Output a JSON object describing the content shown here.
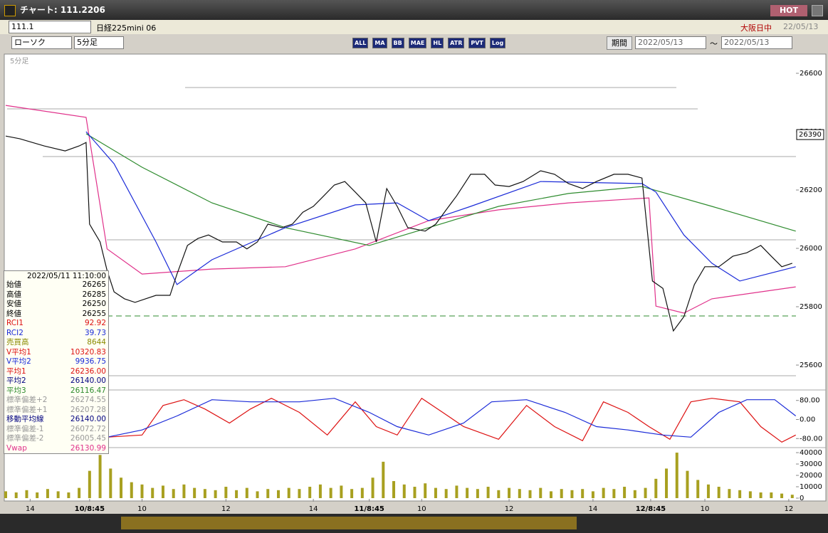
{
  "window": {
    "title": "チャート: 111.2206",
    "hot": "HOT"
  },
  "toolbar": {
    "symbol": "111.1",
    "name": "日経225mini 06",
    "market": "大阪日中",
    "date": "22/05/13",
    "chart_style": "ローソク",
    "interval": "5分足",
    "buttons": [
      "ALL",
      "MA",
      "BB",
      "MAE",
      "HL",
      "ATR",
      "PVT",
      "Log"
    ],
    "period_button": "期間",
    "from": "2022/05/13",
    "separator": "～",
    "to": "2022/05/13"
  },
  "chart_data": [
    {
      "type": "line",
      "panel_label": "5分足",
      "xlim": [
        0,
        226
      ],
      "ylim": [
        25522,
        26661
      ],
      "yticks": [
        25600,
        25800,
        26000,
        26200,
        26400,
        26600
      ],
      "last_price": 26390,
      "series": [
        {
          "color": "#e0308a",
          "x": [
            0,
            23,
            29,
            39,
            59,
            80,
            100,
            121,
            141,
            161,
            184,
            186,
            194,
            202,
            226
          ],
          "values": [
            26490,
            26449,
            25998,
            25912,
            25929,
            25937,
            25998,
            26095,
            26132,
            26156,
            26173,
            25802,
            25778,
            25827,
            25868
          ]
        },
        {
          "color": "#2e8b2e",
          "x": [
            23,
            39,
            59,
            80,
            104,
            121,
            141,
            161,
            182,
            202,
            226
          ],
          "values": [
            26393,
            26278,
            26156,
            26071,
            26010,
            26071,
            26144,
            26188,
            26212,
            26144,
            26059
          ]
        },
        {
          "color": "#1a2ad8",
          "x": [
            23,
            31,
            43,
            49,
            59,
            80,
            100,
            112,
            121,
            133,
            153,
            182,
            186,
            194,
            202,
            210,
            226
          ],
          "values": [
            26400,
            26290,
            26022,
            25876,
            25961,
            26071,
            26149,
            26156,
            26095,
            26144,
            26229,
            26222,
            26193,
            26046,
            25949,
            25888,
            25937
          ]
        },
        {
          "color": "#111111",
          "x": [
            0,
            4,
            11,
            17,
            21,
            23,
            24,
            27,
            29,
            31,
            34,
            37,
            40,
            43,
            47,
            49,
            52,
            55,
            58,
            62,
            66,
            69,
            72,
            75,
            79,
            82,
            85,
            88,
            91,
            94,
            97,
            100,
            103,
            106,
            109,
            112,
            115,
            120,
            123,
            126,
            129,
            133,
            137,
            140,
            144,
            148,
            153,
            157,
            161,
            165,
            169,
            174,
            178,
            182,
            185,
            188,
            191,
            194,
            197,
            200,
            204,
            208,
            212,
            216,
            219,
            222,
            225
          ],
          "values": [
            26385,
            26376,
            26351,
            26334,
            26351,
            26363,
            26083,
            26022,
            25924,
            25851,
            25827,
            25815,
            25827,
            25839,
            25839,
            25912,
            26010,
            26034,
            26046,
            26022,
            26022,
            25998,
            26022,
            26083,
            26071,
            26083,
            26124,
            26144,
            26180,
            26217,
            26229,
            26193,
            26156,
            26022,
            26205,
            26144,
            26071,
            26059,
            26083,
            26132,
            26180,
            26254,
            26254,
            26217,
            26212,
            26229,
            26266,
            26254,
            26222,
            26205,
            26229,
            26254,
            26254,
            26241,
            25888,
            25863,
            25717,
            25766,
            25876,
            25937,
            25937,
            25973,
            25985,
            26010,
            25973,
            25937,
            25949
          ]
        }
      ]
    },
    {
      "type": "line",
      "xlim": [
        0,
        226
      ],
      "ylim": [
        -115,
        118
      ],
      "yticks": [
        {
          "value": 80,
          "label": "80.00"
        },
        {
          "value": 0,
          "label": "0.00"
        },
        {
          "value": -80,
          "label": "-80.00"
        }
      ],
      "series": [
        {
          "color": "#dd1111",
          "x": [
            29,
            39,
            45,
            51,
            57,
            64,
            70,
            76,
            84,
            92,
            100,
            106,
            112,
            119,
            125,
            131,
            141,
            149,
            157,
            165,
            171,
            178,
            184,
            190,
            196,
            202,
            210,
            216,
            222,
            226
          ],
          "values": [
            -74,
            -65,
            59,
            83,
            44,
            -15,
            44,
            89,
            30,
            -65,
            74,
            -30,
            -65,
            89,
            30,
            -30,
            -83,
            59,
            -30,
            -89,
            74,
            30,
            -30,
            -83,
            74,
            89,
            74,
            -30,
            -95,
            -65
          ]
        },
        {
          "color": "#1a2ad8",
          "x": [
            29,
            39,
            49,
            59,
            70,
            84,
            94,
            104,
            112,
            121,
            131,
            139,
            149,
            160,
            169,
            178,
            188,
            196,
            204,
            212,
            220,
            226
          ],
          "values": [
            -74,
            -44,
            15,
            83,
            74,
            74,
            89,
            30,
            -30,
            -65,
            -15,
            74,
            83,
            30,
            -30,
            -44,
            -65,
            -74,
            30,
            83,
            83,
            15
          ]
        }
      ]
    },
    {
      "type": "bar",
      "color": "#a8a020",
      "xlim": [
        0,
        226
      ],
      "ylim": [
        0,
        43800
      ],
      "yticks": [
        0,
        10000,
        20000,
        30000,
        40000
      ],
      "xticks": [
        {
          "value": 7,
          "label": "14"
        },
        {
          "value": 24,
          "label": "10/8:45"
        },
        {
          "value": 39,
          "label": "10"
        },
        {
          "value": 63,
          "label": "12"
        },
        {
          "value": 88,
          "label": "14"
        },
        {
          "value": 104,
          "label": "11/8:45"
        },
        {
          "value": 119,
          "label": "10"
        },
        {
          "value": 144,
          "label": "12"
        },
        {
          "value": 168,
          "label": "14"
        },
        {
          "value": 184.5,
          "label": "12/8:45"
        },
        {
          "value": 200,
          "label": "10"
        },
        {
          "value": 224,
          "label": "12"
        }
      ],
      "x": [
        0,
        3,
        6,
        9,
        12,
        15,
        18,
        21,
        24,
        27,
        30,
        33,
        36,
        39,
        42,
        45,
        48,
        51,
        54,
        57,
        60,
        63,
        66,
        69,
        72,
        75,
        78,
        81,
        84,
        87,
        90,
        93,
        96,
        99,
        102,
        105,
        108,
        111,
        114,
        117,
        120,
        123,
        126,
        129,
        132,
        135,
        138,
        141,
        144,
        147,
        150,
        153,
        156,
        159,
        162,
        165,
        168,
        171,
        174,
        177,
        180,
        183,
        186,
        189,
        192,
        195,
        198,
        201,
        204,
        207,
        210,
        213,
        216,
        219,
        222,
        225
      ],
      "values": [
        6000,
        5000,
        7000,
        5000,
        8000,
        6000,
        5000,
        9000,
        24000,
        38000,
        26000,
        18000,
        14000,
        12000,
        9000,
        11000,
        8000,
        12000,
        9000,
        8000,
        7000,
        10000,
        7000,
        9000,
        6000,
        8000,
        7000,
        9000,
        8000,
        10000,
        12000,
        9000,
        11000,
        8000,
        9000,
        18000,
        32000,
        15000,
        12000,
        10000,
        13000,
        9000,
        8000,
        11000,
        9000,
        8000,
        10000,
        7000,
        9000,
        8000,
        7000,
        9000,
        6000,
        8000,
        7000,
        8000,
        6000,
        9000,
        8000,
        10000,
        7000,
        9000,
        17000,
        26000,
        40000,
        24000,
        16000,
        12000,
        10000,
        8000,
        7000,
        6000,
        5000,
        5000,
        4000,
        3000
      ]
    }
  ],
  "info_panel": {
    "datetime": "2022/05/11 11:10:00",
    "rows": [
      {
        "label": "始値",
        "value": "26265",
        "color": "#000000"
      },
      {
        "label": "高値",
        "value": "26285",
        "color": "#000000"
      },
      {
        "label": "安値",
        "value": "26250",
        "color": "#000000"
      },
      {
        "label": "終値",
        "value": "26255",
        "color": "#000000"
      },
      {
        "label": "RCI1",
        "value": "92.92",
        "color": "#dd1111"
      },
      {
        "label": "RCI2",
        "value": "39.73",
        "color": "#1a2ad8"
      },
      {
        "label": "売買高",
        "value": "8644",
        "color": "#8a8a00"
      },
      {
        "label": "V平均1",
        "value": "10320.83",
        "color": "#dd1111"
      },
      {
        "label": "V平均2",
        "value": "9936.75",
        "color": "#1a2ad8"
      },
      {
        "label": "平均1",
        "value": "26236.00",
        "color": "#dd1111"
      },
      {
        "label": "平均2",
        "value": "26140.00",
        "color": "#000080"
      },
      {
        "label": "平均3",
        "value": "26116.47",
        "color": "#2e8b2e"
      },
      {
        "label": "標準偏差+2",
        "value": "26274.55",
        "color": "#999999"
      },
      {
        "label": "標準偏差+1",
        "value": "26207.28",
        "color": "#999999"
      },
      {
        "label": "移動平均線",
        "value": "26140.00",
        "color": "#000080"
      },
      {
        "label": "標準偏差-1",
        "value": "26072.72",
        "color": "#999999"
      },
      {
        "label": "標準偏差-2",
        "value": "26005.45",
        "color": "#999999"
      },
      {
        "label": "Vwap",
        "value": "26130.99",
        "color": "#e0308a"
      }
    ]
  }
}
